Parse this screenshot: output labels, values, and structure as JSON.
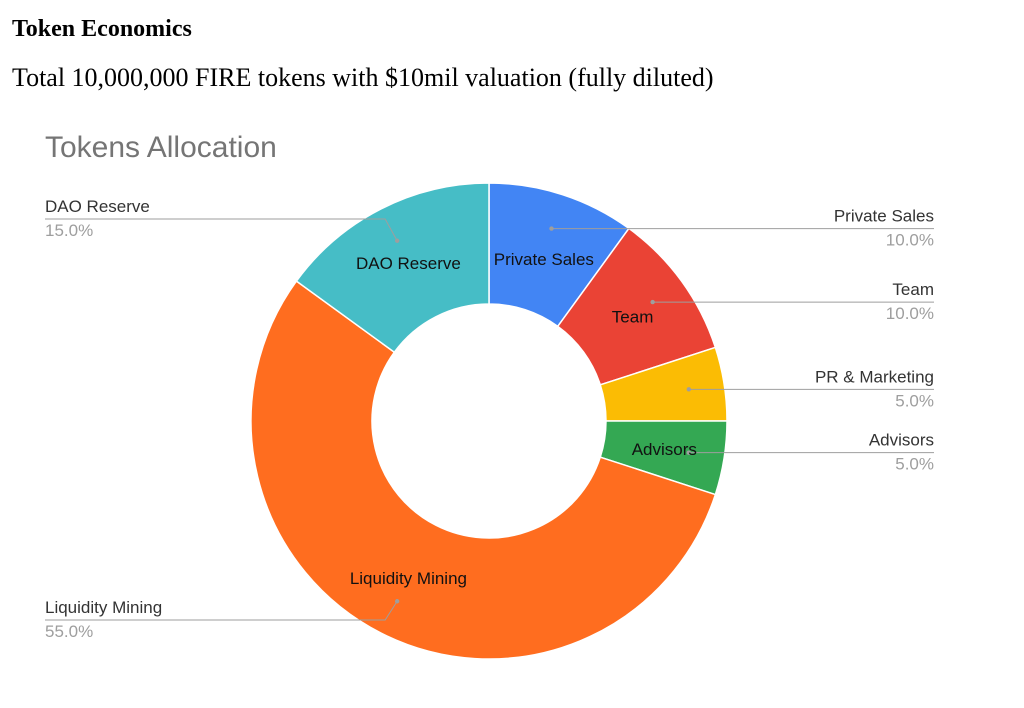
{
  "heading": "Token Economics",
  "subtitle": "Total 10,000,000 FIRE tokens with $10mil valuation (fully diluted)",
  "chart_data": {
    "type": "pie",
    "subtype": "donut",
    "title": "Tokens Allocation",
    "legend": "none",
    "slices": [
      {
        "label": "Private Sales",
        "value": 10.0,
        "pct_label": "10.0%",
        "color": "#4285F4",
        "callout_side": "right"
      },
      {
        "label": "Team",
        "value": 10.0,
        "pct_label": "10.0%",
        "color": "#EA4335",
        "callout_side": "right"
      },
      {
        "label": "PR & Marketing",
        "value": 5.0,
        "pct_label": "5.0%",
        "color": "#FBBC04",
        "callout_side": "right"
      },
      {
        "label": "Advisors",
        "value": 5.0,
        "pct_label": "5.0%",
        "color": "#34A853",
        "callout_side": "right"
      },
      {
        "label": "Liquidity Mining",
        "value": 55.0,
        "pct_label": "55.0%",
        "color": "#FF6D1F",
        "callout_side": "left"
      },
      {
        "label": "DAO Reserve",
        "value": 15.0,
        "pct_label": "15.0%",
        "color": "#46BDC6",
        "callout_side": "left"
      }
    ],
    "in_slice_labels": [
      "Private Sales",
      "Team",
      "Advisors",
      "Liquidity Mining",
      "DAO Reserve"
    ],
    "colors": {
      "title": "#757575",
      "callout_label": "#333333",
      "callout_pct": "#9e9e9e",
      "callout_line": "#9e9e9e",
      "slice_text": "#111111"
    }
  }
}
